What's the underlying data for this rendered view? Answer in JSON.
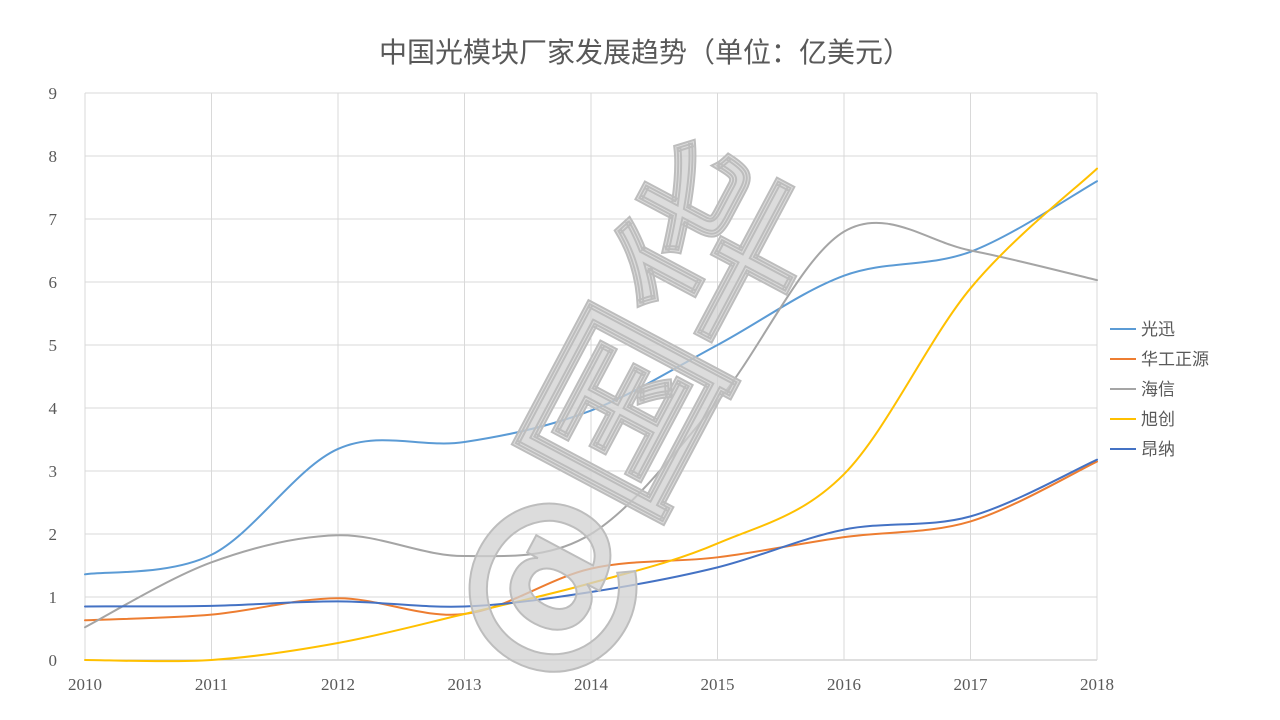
{
  "chart_data": {
    "type": "line",
    "title": "中国光模块厂家发展趋势（单位：亿美元）",
    "xlabel": "",
    "ylabel": "",
    "x": [
      "2010",
      "2011",
      "2012",
      "2013",
      "2014",
      "2015",
      "2016",
      "2017",
      "2018"
    ],
    "ylim": [
      0,
      9
    ],
    "yticks": [
      "0",
      "1",
      "2",
      "3",
      "4",
      "5",
      "6",
      "7",
      "8",
      "9"
    ],
    "grid": true,
    "smooth": true,
    "legend_position": "right",
    "watermark": "@国华",
    "series": [
      {
        "name": "光迅",
        "color": "#5B9BD5",
        "values": [
          1.36,
          1.67,
          3.35,
          3.46,
          3.96,
          5.0,
          6.1,
          6.48,
          7.6
        ]
      },
      {
        "name": "华工正源",
        "color": "#ED7D31",
        "values": [
          0.63,
          0.72,
          0.98,
          0.73,
          1.45,
          1.63,
          1.95,
          2.2,
          3.15
        ]
      },
      {
        "name": "海信",
        "color": "#A5A5A5",
        "values": [
          0.52,
          1.55,
          1.98,
          1.65,
          2.0,
          4.1,
          6.8,
          6.5,
          6.03
        ]
      },
      {
        "name": "旭创",
        "color": "#FFC000",
        "values": [
          0.0,
          0.0,
          0.27,
          0.73,
          1.22,
          1.85,
          2.95,
          5.9,
          7.8
        ]
      },
      {
        "name": "昂纳",
        "color": "#4472C4",
        "values": [
          0.85,
          0.86,
          0.93,
          0.85,
          1.08,
          1.47,
          2.07,
          2.28,
          3.18
        ]
      }
    ]
  }
}
